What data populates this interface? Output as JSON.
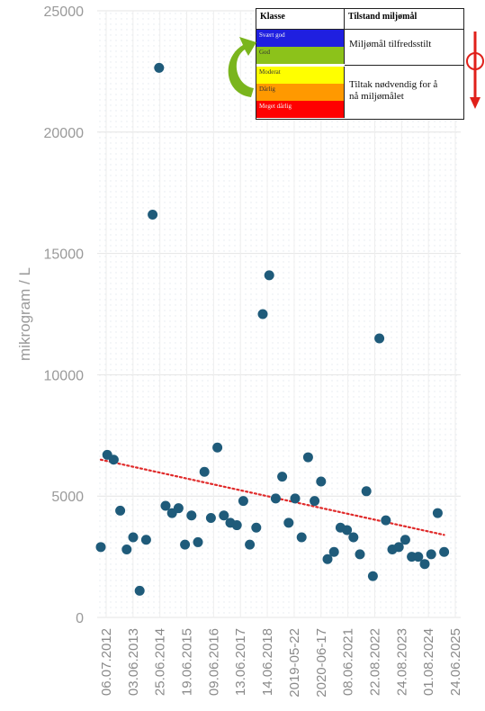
{
  "chart_data": {
    "type": "scatter",
    "ylabel": "mikrogram / L",
    "ylim": [
      0,
      25000
    ],
    "y_ticks": [
      0,
      5000,
      10000,
      15000,
      20000,
      25000
    ],
    "x_ticks": [
      "06.07.2012",
      "03.06.2013",
      "25.06.2014",
      "19.06.2015",
      "09.06.2016",
      "13.06.2017",
      "14.06.2018",
      "2019-05-22",
      "2020-06-17",
      "08.06.2021",
      "22.08.2022",
      "24.08.2023",
      "01.08.2024",
      "24.06.2025"
    ],
    "x_range": [
      0,
      55
    ],
    "points": [
      {
        "x": 0,
        "y": 2900
      },
      {
        "x": 1,
        "y": 6700
      },
      {
        "x": 2,
        "y": 6500
      },
      {
        "x": 3,
        "y": 4400
      },
      {
        "x": 4,
        "y": 2800
      },
      {
        "x": 5,
        "y": 3300
      },
      {
        "x": 6,
        "y": 1100
      },
      {
        "x": 7,
        "y": 3200
      },
      {
        "x": 8,
        "y": 16600
      },
      {
        "x": 9,
        "y": 22650
      },
      {
        "x": 10,
        "y": 4600
      },
      {
        "x": 11,
        "y": 4300
      },
      {
        "x": 12,
        "y": 4500
      },
      {
        "x": 13,
        "y": 3000
      },
      {
        "x": 14,
        "y": 4200
      },
      {
        "x": 15,
        "y": 3100
      },
      {
        "x": 16,
        "y": 6000
      },
      {
        "x": 17,
        "y": 4100
      },
      {
        "x": 18,
        "y": 7000
      },
      {
        "x": 19,
        "y": 4200
      },
      {
        "x": 20,
        "y": 3900
      },
      {
        "x": 21,
        "y": 3800
      },
      {
        "x": 22,
        "y": 4800
      },
      {
        "x": 23,
        "y": 3000
      },
      {
        "x": 24,
        "y": 3700
      },
      {
        "x": 25,
        "y": 12500
      },
      {
        "x": 26,
        "y": 14100
      },
      {
        "x": 27,
        "y": 4900
      },
      {
        "x": 28,
        "y": 5800
      },
      {
        "x": 29,
        "y": 3900
      },
      {
        "x": 30,
        "y": 4900
      },
      {
        "x": 31,
        "y": 3300
      },
      {
        "x": 32,
        "y": 6600
      },
      {
        "x": 33,
        "y": 4800
      },
      {
        "x": 34,
        "y": 5600
      },
      {
        "x": 35,
        "y": 2400
      },
      {
        "x": 36,
        "y": 2700
      },
      {
        "x": 37,
        "y": 3700
      },
      {
        "x": 38,
        "y": 3600
      },
      {
        "x": 39,
        "y": 3300
      },
      {
        "x": 40,
        "y": 2600
      },
      {
        "x": 41,
        "y": 5200
      },
      {
        "x": 42,
        "y": 1700
      },
      {
        "x": 43,
        "y": 11500
      },
      {
        "x": 44,
        "y": 4000
      },
      {
        "x": 45,
        "y": 2800
      },
      {
        "x": 46,
        "y": 2900
      },
      {
        "x": 47,
        "y": 3200
      },
      {
        "x": 48,
        "y": 2500
      },
      {
        "x": 49,
        "y": 2500
      },
      {
        "x": 50,
        "y": 2200
      },
      {
        "x": 51,
        "y": 2600
      },
      {
        "x": 52,
        "y": 4300
      },
      {
        "x": 53,
        "y": 2700
      }
    ],
    "trendline": {
      "style": "dotted",
      "color": "#e02a2a",
      "x": [
        0,
        53
      ],
      "y": [
        6500,
        3400
      ]
    },
    "marker_color": "#1f5b7a",
    "grid": true
  },
  "legend": {
    "col1_header": "Klasse",
    "col2_header": "Tilstand miljømål",
    "classes": [
      {
        "label": "Svært god",
        "color": "#1f1fe0"
      },
      {
        "label": "God",
        "color": "#8cc21a"
      },
      {
        "label": "Moderat",
        "color": "#ffff00"
      },
      {
        "label": "Dårlig",
        "color": "#ff9900"
      },
      {
        "label": "Meget dårlig",
        "color": "#ff0000"
      }
    ],
    "good_text": "Miljømål tilfredsstilt",
    "bad_text": "Tiltak nødvendig for å nå miljømålet",
    "arrow_up_color": "#7ab51d",
    "arrow_down_color": "#e0201a"
  }
}
